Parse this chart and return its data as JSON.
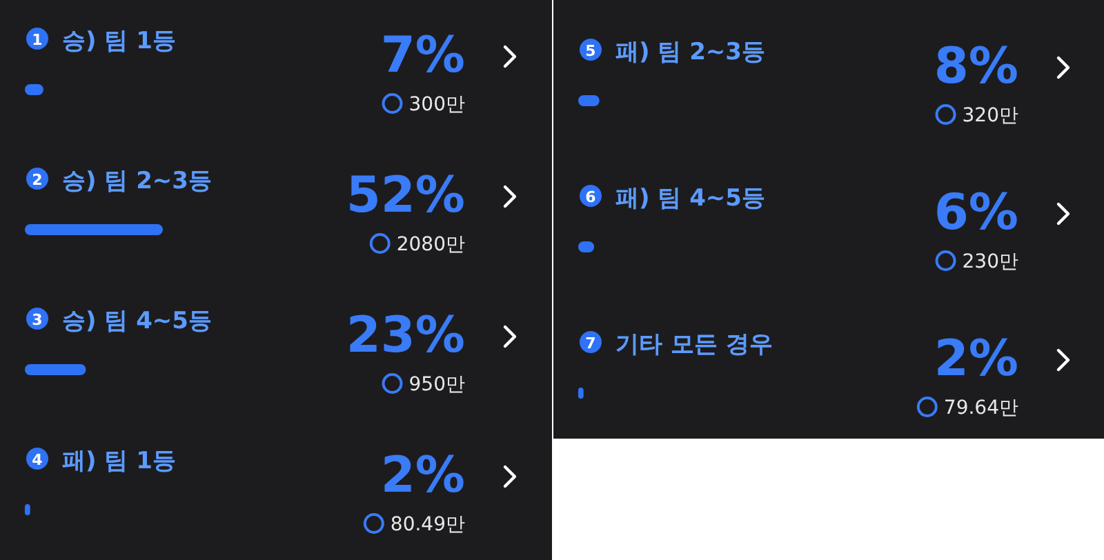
{
  "chart_data": [
    {
      "type": "bar",
      "orientation": "horizontal",
      "categories": [
        "승) 팀 1등",
        "승) 팀 2~3등",
        "승) 팀 4~5등",
        "패) 팀 1등"
      ],
      "values": [
        7,
        52,
        23,
        2
      ],
      "value_labels": [
        "7%",
        "52%",
        "23%",
        "2%"
      ],
      "color": "#2f72f5",
      "annotations": [
        "300만",
        "2080만",
        "950만",
        "80.49만",
        "1",
        "2",
        "3",
        "4"
      ]
    },
    {
      "type": "bar",
      "orientation": "horizontal",
      "categories": [
        "패) 팀 2~3등",
        "패) 팀 4~5등",
        "기타 모든 경우"
      ],
      "values": [
        8,
        6,
        2
      ],
      "value_labels": [
        "8%",
        "6%",
        "2%"
      ],
      "color": "#2f72f5",
      "annotations": [
        "320만",
        "230만",
        "79.64만",
        "5",
        "6",
        "7"
      ]
    }
  ]
}
